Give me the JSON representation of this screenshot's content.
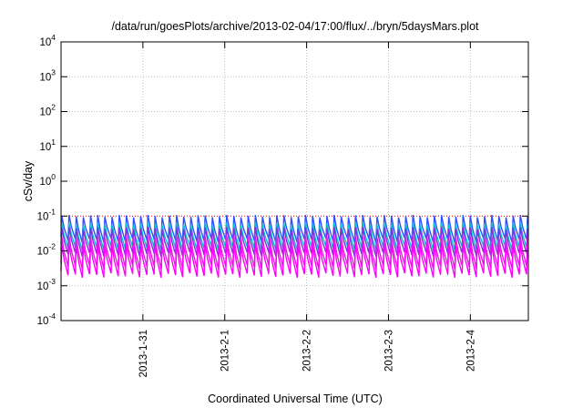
{
  "chart_data": {
    "type": "line",
    "title": "/data/run/goesPlots/archive/2013-02-04/17:00/flux/../bryn/5daysMars.plot",
    "xlabel": "Coordinated Universal Time (UTC)",
    "ylabel": "cSv/day",
    "y_scale": "log",
    "ylim": [
      0.0001,
      10000
    ],
    "y_ticks": [
      {
        "base": "10",
        "exp": "-4",
        "value": 0.0001
      },
      {
        "base": "10",
        "exp": "-3",
        "value": 0.001
      },
      {
        "base": "10",
        "exp": "-2",
        "value": 0.01
      },
      {
        "base": "10",
        "exp": "-1",
        "value": 0.1
      },
      {
        "base": "10",
        "exp": "0",
        "value": 1
      },
      {
        "base": "10",
        "exp": "1",
        "value": 10
      },
      {
        "base": "10",
        "exp": "2",
        "value": 100
      },
      {
        "base": "10",
        "exp": "3",
        "value": 1000
      },
      {
        "base": "10",
        "exp": "4",
        "value": 10000
      }
    ],
    "xlim": [
      "2013-01-30T00:00",
      "2013-02-04T17:00"
    ],
    "x_ticks": [
      "2013-1-31",
      "2013-2-1",
      "2013-2-2",
      "2013-2-3",
      "2013-2-4"
    ],
    "grid": true,
    "reference_line": {
      "value": 0.1,
      "color": "#ff0000",
      "style": "dotted"
    },
    "sawtooth_period_hours": 2.1,
    "series": [
      {
        "color": "#3050ff",
        "peak": 0.1,
        "trough": 0.02
      },
      {
        "color": "#00c8c8",
        "peak": 0.06,
        "trough": 0.012
      },
      {
        "color": "#8a2be2",
        "peak": 0.045,
        "trough": 0.008
      },
      {
        "color": "#e020e0",
        "peak": 0.025,
        "trough": 0.0035
      },
      {
        "color": "#ff00ff",
        "peak": 0.015,
        "trough": 0.002
      }
    ]
  }
}
